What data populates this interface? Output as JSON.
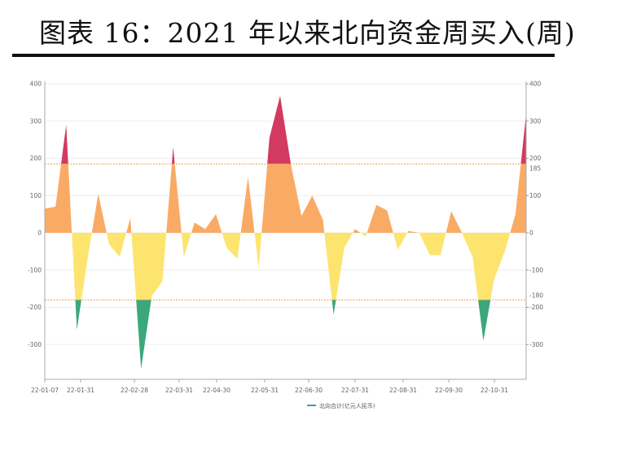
{
  "title": "图表 16：2021 年以来北向资金周买入(周)",
  "chart_data": {
    "type": "area",
    "title": "图表 16：2021 年以来北向资金周买入(周)",
    "xlabel": "",
    "ylabel": "",
    "ylim": [
      -390,
      400
    ],
    "yticks": [
      400,
      300,
      200,
      100,
      0,
      -100,
      -200,
      -300
    ],
    "right_extra_ticks": [
      185,
      -180
    ],
    "xtick_labels": [
      "22-01-07",
      "22-01-31",
      "22-02-28",
      "22-03-31",
      "22-04-30",
      "22-05-31",
      "22-06-30",
      "22-07-31",
      "22-08-31",
      "22-09-30",
      "22-10-31"
    ],
    "thresholds": [
      185,
      -180
    ],
    "grid": true,
    "legend": {
      "label": "北向合计(亿元人民币)",
      "position": "bottom",
      "color": "#4a90c0"
    },
    "band_colors": {
      "above_185": "#d23a60",
      "0_to_185": "#f9ab66",
      "-180_to_0": "#fde46e",
      "below_-180": "#3aa87c"
    },
    "threshold_color": "#f0a050",
    "series": [
      {
        "values": [
          65,
          70,
          290,
          -260,
          -70,
          105,
          -30,
          -65,
          40,
          -365,
          -170,
          -130,
          230,
          -65,
          28,
          10,
          50,
          -40,
          -70,
          150,
          -95,
          255,
          368,
          185,
          45,
          100,
          35,
          -220,
          -40,
          10,
          -10,
          75,
          60,
          -45,
          5,
          0,
          -60,
          -60,
          58,
          0,
          -65,
          -290,
          -125,
          -50,
          50,
          320
        ]
      }
    ]
  }
}
